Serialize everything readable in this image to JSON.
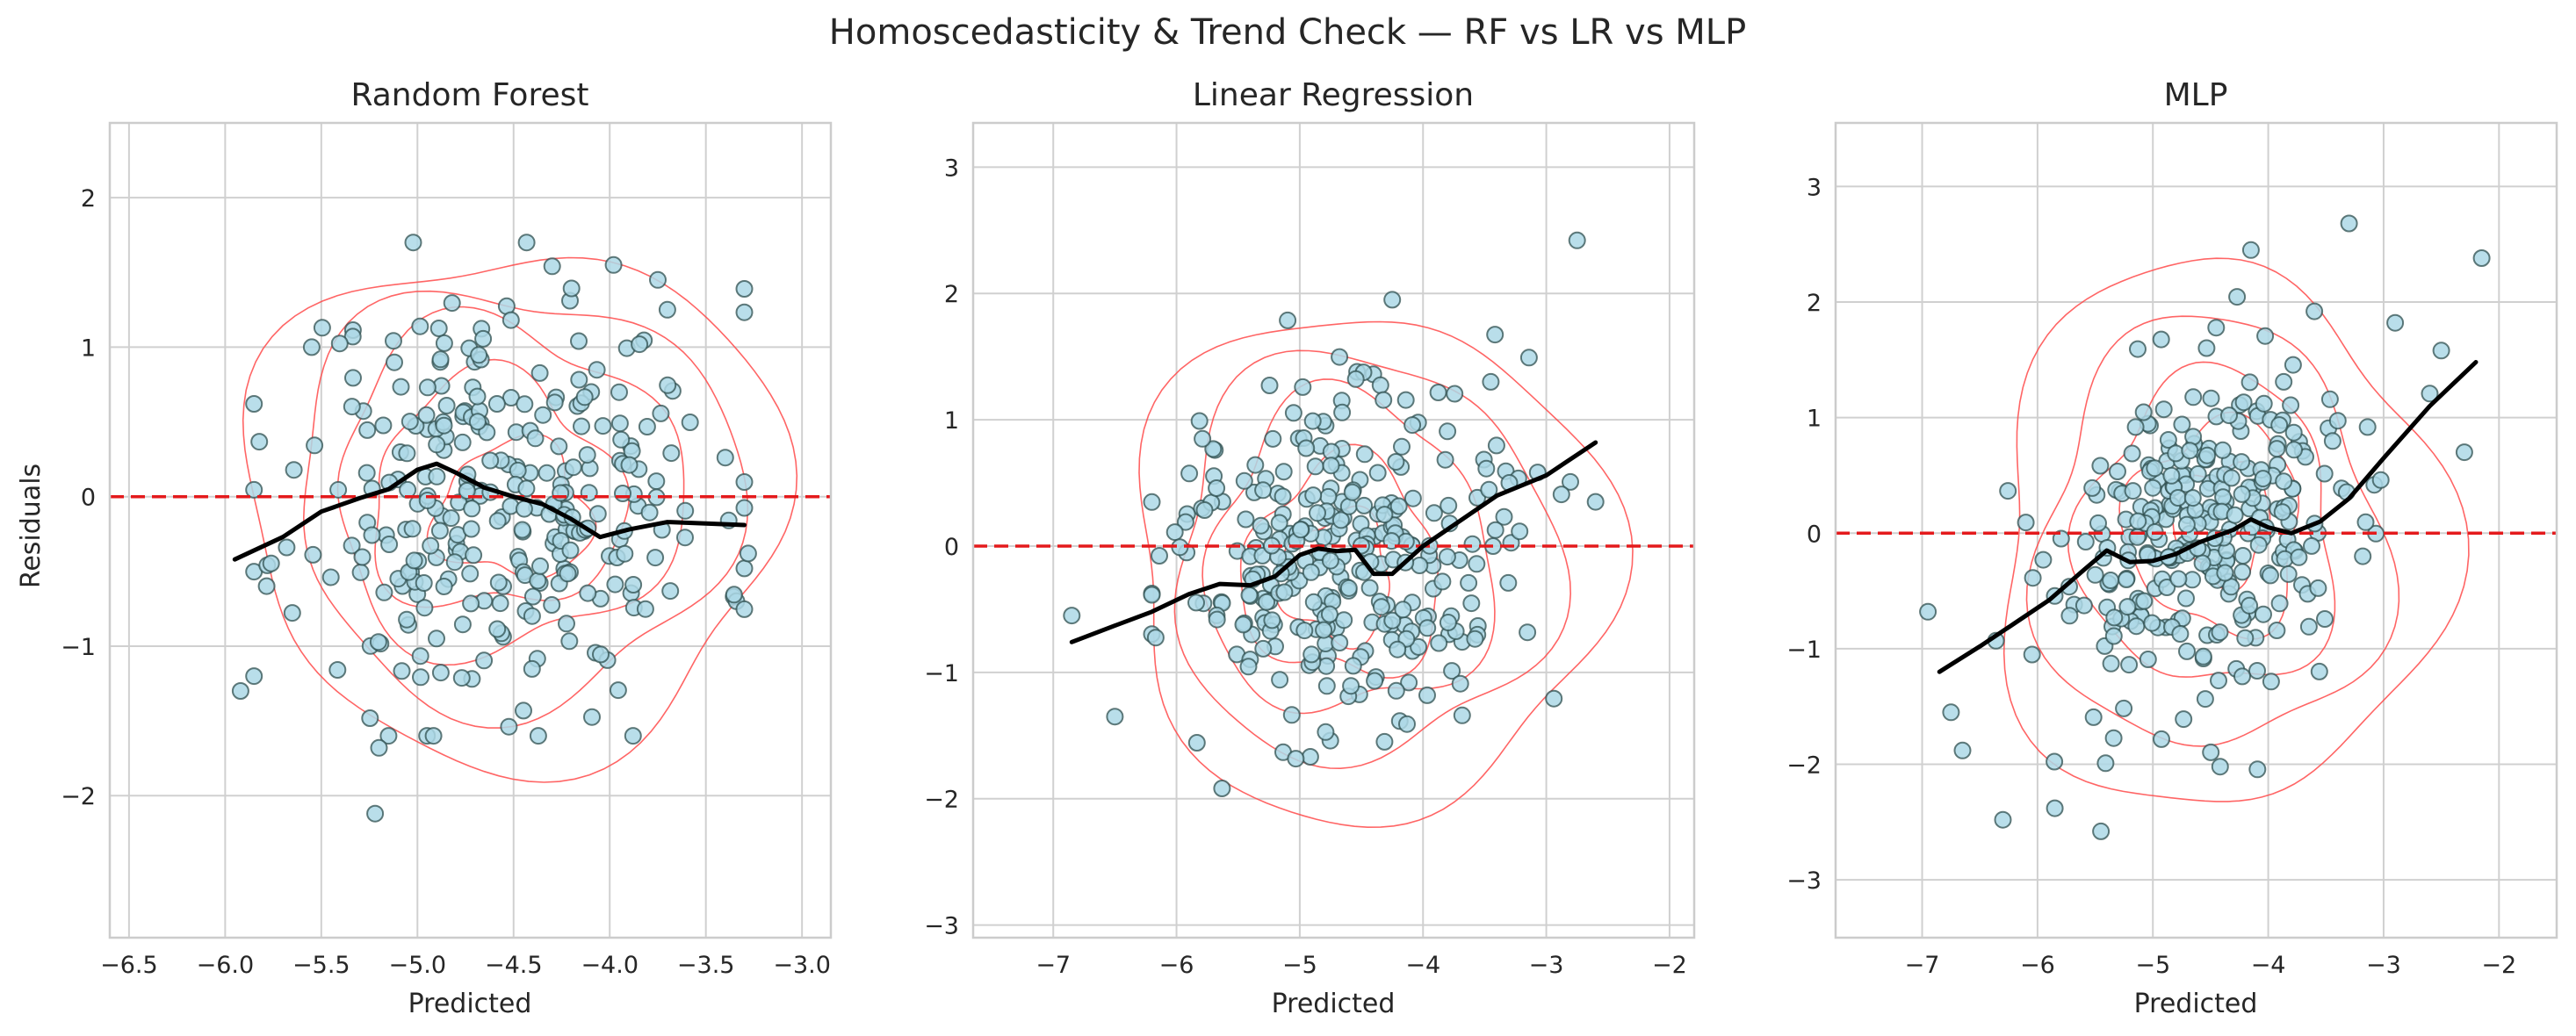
{
  "title": "Homoscedasticity & Trend Check — RF vs LR vs MLP",
  "colors": {
    "point_fill": "#add8e6",
    "point_edge": "#2f4f4f",
    "zero_line": "#e41a1c",
    "trend_line": "#000000",
    "contour": "#ff4a4a",
    "grid": "#d0d0d0",
    "spine": "#cccccc"
  },
  "chart_data": [
    {
      "type": "scatter",
      "title": "Random Forest",
      "xlabel": "Predicted",
      "ylabel": "Residuals",
      "xlim": [
        -6.6,
        -2.85
      ],
      "ylim": [
        -2.95,
        2.5
      ],
      "xticks": [
        -6.5,
        -6.0,
        -5.5,
        -5.0,
        -4.5,
        -4.0,
        -3.5,
        -3.0
      ],
      "xticklabels": [
        "−6.5",
        "−6.0",
        "−5.5",
        "−5.0",
        "−4.5",
        "−4.0",
        "−3.5",
        "−3.0"
      ],
      "yticks": [
        -2,
        -1,
        0,
        1,
        2
      ],
      "yticklabels": [
        "−2",
        "−1",
        "0",
        "1",
        "2"
      ],
      "zero_line": 0,
      "lowess": [
        [
          -5.95,
          -0.42
        ],
        [
          -5.7,
          -0.27
        ],
        [
          -5.5,
          -0.1
        ],
        [
          -5.3,
          -0.01
        ],
        [
          -5.15,
          0.05
        ],
        [
          -5.0,
          0.18
        ],
        [
          -4.9,
          0.22
        ],
        [
          -4.8,
          0.16
        ],
        [
          -4.65,
          0.06
        ],
        [
          -4.5,
          0.0
        ],
        [
          -4.35,
          -0.05
        ],
        [
          -4.2,
          -0.15
        ],
        [
          -4.05,
          -0.27
        ],
        [
          -3.9,
          -0.22
        ],
        [
          -3.7,
          -0.17
        ],
        [
          -3.5,
          -0.18
        ],
        [
          -3.3,
          -0.19
        ]
      ],
      "contours": [
        {
          "cx": -4.5,
          "cy": -0.05,
          "rx": 1.4,
          "ry": 1.72,
          "wobble": 0.07
        },
        {
          "cx": -4.5,
          "cy": 0.0,
          "rx": 1.15,
          "ry": 1.4,
          "wobble": 0.08
        },
        {
          "cx": -4.55,
          "cy": 0.05,
          "rx": 0.9,
          "ry": 1.1,
          "wobble": 0.1
        },
        {
          "cx": -4.6,
          "cy": 0.0,
          "rx": 0.65,
          "ry": 0.78,
          "wobble": 0.12
        },
        {
          "cx": -4.5,
          "cy": -0.1,
          "rx": 0.4,
          "ry": 0.45,
          "wobble": 0.14
        }
      ],
      "outliers": [
        [
          -5.92,
          -1.3
        ],
        [
          -5.2,
          -1.68
        ],
        [
          -5.22,
          -2.12
        ],
        [
          -3.98,
          1.55
        ],
        [
          -3.75,
          1.45
        ],
        [
          -3.7,
          1.25
        ],
        [
          -5.55,
          1.0
        ],
        [
          -3.3,
          -0.48
        ],
        [
          -3.28,
          -0.38
        ]
      ],
      "cloud": {
        "seed": 11,
        "n": 300,
        "xmin": -5.85,
        "xmax": -3.3,
        "xmid": -4.55,
        "xs": 0.55,
        "sy": 0.7,
        "slope": 0.0,
        "y0": 0.0,
        "ymin": -1.6,
        "ymax": 1.7
      }
    },
    {
      "type": "scatter",
      "title": "Linear Regression",
      "xlabel": "Predicted",
      "ylabel": "",
      "xlim": [
        -7.65,
        -1.8
      ],
      "ylim": [
        -3.1,
        3.35
      ],
      "xticks": [
        -7,
        -6,
        -5,
        -4,
        -3,
        -2
      ],
      "xticklabels": [
        "−7",
        "−6",
        "−5",
        "−4",
        "−3",
        "−2"
      ],
      "yticks": [
        -3,
        -2,
        -1,
        0,
        1,
        2,
        3
      ],
      "yticklabels": [
        "−3",
        "−2",
        "−1",
        "0",
        "1",
        "2",
        "3"
      ],
      "zero_line": 0,
      "lowess": [
        [
          -6.85,
          -0.76
        ],
        [
          -6.5,
          -0.63
        ],
        [
          -6.2,
          -0.52
        ],
        [
          -5.9,
          -0.38
        ],
        [
          -5.65,
          -0.3
        ],
        [
          -5.4,
          -0.31
        ],
        [
          -5.2,
          -0.24
        ],
        [
          -5.0,
          -0.07
        ],
        [
          -4.85,
          -0.02
        ],
        [
          -4.7,
          -0.04
        ],
        [
          -4.55,
          -0.03
        ],
        [
          -4.4,
          -0.22
        ],
        [
          -4.25,
          -0.22
        ],
        [
          -4.0,
          0.0
        ],
        [
          -3.7,
          0.2
        ],
        [
          -3.4,
          0.4
        ],
        [
          -3.0,
          0.56
        ],
        [
          -2.6,
          0.82
        ]
      ],
      "contours": [
        {
          "cx": -4.45,
          "cy": -0.15,
          "rx": 1.95,
          "ry": 2.0,
          "wobble": 0.07
        },
        {
          "cx": -4.5,
          "cy": -0.1,
          "rx": 1.55,
          "ry": 1.6,
          "wobble": 0.08
        },
        {
          "cx": -4.6,
          "cy": -0.1,
          "rx": 1.15,
          "ry": 1.25,
          "wobble": 0.1
        },
        {
          "cx": -4.65,
          "cy": -0.2,
          "rx": 0.8,
          "ry": 0.85,
          "wobble": 0.12
        },
        {
          "cx": -4.7,
          "cy": -0.25,
          "rx": 0.45,
          "ry": 0.5,
          "wobble": 0.14
        }
      ],
      "outliers": [
        [
          -6.85,
          -0.55
        ],
        [
          -6.5,
          -1.35
        ],
        [
          -2.75,
          2.42
        ],
        [
          -2.6,
          0.35
        ],
        [
          -3.45,
          1.3
        ],
        [
          -3.3,
          0.5
        ],
        [
          -4.25,
          1.95
        ]
      ],
      "cloud": {
        "seed": 27,
        "n": 300,
        "xmin": -6.2,
        "xmax": -2.7,
        "xmid": -4.7,
        "xs": 0.7,
        "sy": 0.7,
        "slope": 0.15,
        "y0": -0.1,
        "ymin": -2.15,
        "ymax": 1.85
      }
    },
    {
      "type": "scatter",
      "title": "MLP",
      "xlabel": "Predicted",
      "ylabel": "",
      "xlim": [
        -7.75,
        -1.5
      ],
      "ylim": [
        -3.5,
        3.55
      ],
      "xticks": [
        -7,
        -6,
        -5,
        -4,
        -3,
        -2
      ],
      "xticklabels": [
        "−7",
        "−6",
        "−5",
        "−4",
        "−3",
        "−2"
      ],
      "yticks": [
        -3,
        -2,
        -1,
        0,
        1,
        2,
        3
      ],
      "yticklabels": [
        "−3",
        "−2",
        "−1",
        "0",
        "1",
        "2",
        "3"
      ],
      "zero_line": 0,
      "lowess": [
        [
          -6.85,
          -1.2
        ],
        [
          -6.5,
          -0.98
        ],
        [
          -6.2,
          -0.78
        ],
        [
          -5.9,
          -0.58
        ],
        [
          -5.6,
          -0.32
        ],
        [
          -5.4,
          -0.15
        ],
        [
          -5.2,
          -0.25
        ],
        [
          -5.0,
          -0.24
        ],
        [
          -4.8,
          -0.18
        ],
        [
          -4.6,
          -0.08
        ],
        [
          -4.3,
          0.03
        ],
        [
          -4.15,
          0.12
        ],
        [
          -4.0,
          0.05
        ],
        [
          -3.8,
          0.0
        ],
        [
          -3.55,
          0.1
        ],
        [
          -3.3,
          0.3
        ],
        [
          -3.0,
          0.65
        ],
        [
          -2.6,
          1.1
        ],
        [
          -2.2,
          1.48
        ]
      ],
      "contours": [
        {
          "cx": -4.45,
          "cy": -0.05,
          "rx": 1.95,
          "ry": 2.35,
          "wobble": 0.08
        },
        {
          "cx": -4.5,
          "cy": -0.05,
          "rx": 1.5,
          "ry": 1.85,
          "wobble": 0.09
        },
        {
          "cx": -4.5,
          "cy": 0.0,
          "rx": 1.1,
          "ry": 1.35,
          "wobble": 0.1
        },
        {
          "cx": -4.45,
          "cy": 0.05,
          "rx": 0.75,
          "ry": 0.9,
          "wobble": 0.12
        },
        {
          "cx": -4.4,
          "cy": 0.1,
          "rx": 0.42,
          "ry": 0.5,
          "wobble": 0.14
        }
      ],
      "outliers": [
        [
          -6.95,
          -0.68
        ],
        [
          -6.75,
          -1.55
        ],
        [
          -6.65,
          -1.88
        ],
        [
          -6.3,
          -2.48
        ],
        [
          -5.85,
          -2.38
        ],
        [
          -5.45,
          -2.58
        ],
        [
          -3.3,
          2.68
        ],
        [
          -2.9,
          1.82
        ],
        [
          -2.5,
          1.58
        ],
        [
          -2.15,
          2.38
        ],
        [
          -2.3,
          0.7
        ],
        [
          -3.6,
          1.92
        ],
        [
          -4.15,
          2.45
        ]
      ],
      "cloud": {
        "seed": 53,
        "n": 300,
        "xmin": -6.6,
        "xmax": -2.6,
        "xmid": -4.5,
        "xs": 0.7,
        "sy": 0.72,
        "slope": 0.3,
        "y0": 0.0,
        "ymin": -2.4,
        "ymax": 2.3
      }
    }
  ]
}
